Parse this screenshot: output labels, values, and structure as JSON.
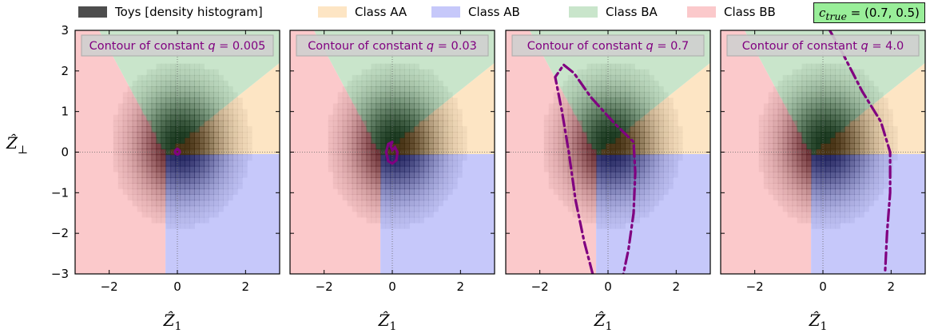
{
  "legend": {
    "items": [
      {
        "label": "Toys [density histogram]",
        "color": "#4d4d4d"
      },
      {
        "label": "Class AA",
        "color": "#fde5c4"
      },
      {
        "label": "Class AB",
        "color": "#c6c8fa"
      },
      {
        "label": "Class BA",
        "color": "#c9e5cb"
      },
      {
        "label": "Class BB",
        "color": "#fbc9cb"
      }
    ],
    "c_true_symbol": "c",
    "c_true_subscript": "true",
    "c_true_value": " = (0.7, 0.5)"
  },
  "chart_data": {
    "type": "heatmap",
    "xlabel": "Ẑ",
    "xlabel_sub": "1",
    "ylabel": "Ẑ",
    "ylabel_sub": "⊥",
    "xlim": [
      -3,
      3
    ],
    "ylim": [
      -3,
      3
    ],
    "xticks": [
      -2,
      0,
      2
    ],
    "yticks": [
      -3,
      -2,
      -1,
      0,
      1,
      2,
      3
    ],
    "class_colors": {
      "AA": "#fde5c4",
      "AB": "#c6c8fa",
      "BA": "#c9e5cb",
      "BB": "#fbc9cb"
    },
    "contour_color": "#800080",
    "panels": [
      {
        "label": "Contour of constant q = 0.005",
        "label_prefix": "Contour of constant ",
        "label_q": "q",
        "label_value": " = 0.005",
        "q": 0.005,
        "contour": [
          [
            0.0,
            0.08
          ],
          [
            0.06,
            0.04
          ],
          [
            0.07,
            0.0
          ],
          [
            0.05,
            -0.04
          ],
          [
            0.0,
            -0.06
          ],
          [
            -0.05,
            -0.04
          ],
          [
            -0.07,
            0.0
          ],
          [
            -0.05,
            0.05
          ],
          [
            0.0,
            0.08
          ]
        ]
      },
      {
        "label": "Contour of constant q = 0.03",
        "label_prefix": "Contour of constant ",
        "label_q": "q",
        "label_value": " = 0.03",
        "q": 0.03,
        "contour": [
          [
            0.0,
            0.25
          ],
          [
            -0.12,
            0.2
          ],
          [
            -0.18,
            0.0
          ],
          [
            -0.12,
            -0.22
          ],
          [
            0.0,
            -0.28
          ],
          [
            0.12,
            -0.2
          ],
          [
            0.15,
            0.0
          ],
          [
            0.08,
            0.12
          ],
          [
            0.0,
            0.05
          ],
          [
            -0.05,
            0.15
          ],
          [
            0.0,
            0.25
          ]
        ]
      },
      {
        "label": "Contour of constant q = 0.7",
        "label_prefix": "Contour of constant ",
        "label_q": "q",
        "label_value": " = 0.7",
        "q": 0.7,
        "contour": [
          [
            -0.45,
            -3.0
          ],
          [
            -0.7,
            -2.2
          ],
          [
            -0.95,
            -1.2
          ],
          [
            -1.15,
            0.0
          ],
          [
            -1.35,
            1.0
          ],
          [
            -1.55,
            1.85
          ],
          [
            -1.3,
            2.15
          ],
          [
            -1.0,
            1.95
          ],
          [
            -0.5,
            1.35
          ],
          [
            0.2,
            0.7
          ],
          [
            0.75,
            0.25
          ],
          [
            0.8,
            -0.5
          ],
          [
            0.75,
            -1.5
          ],
          [
            0.6,
            -2.4
          ],
          [
            0.45,
            -3.0
          ]
        ]
      },
      {
        "label": "Contour of constant q = 4.0",
        "label_prefix": "Contour of constant ",
        "label_q": "q",
        "label_value": " = 4.0",
        "q": 4.0,
        "contour": [
          [
            0.2,
            3.0
          ],
          [
            0.6,
            2.4
          ],
          [
            1.15,
            1.5
          ],
          [
            1.7,
            0.75
          ],
          [
            1.97,
            0.0
          ],
          [
            1.97,
            -1.0
          ],
          [
            1.88,
            -2.0
          ],
          [
            1.82,
            -3.0
          ]
        ]
      }
    ]
  }
}
